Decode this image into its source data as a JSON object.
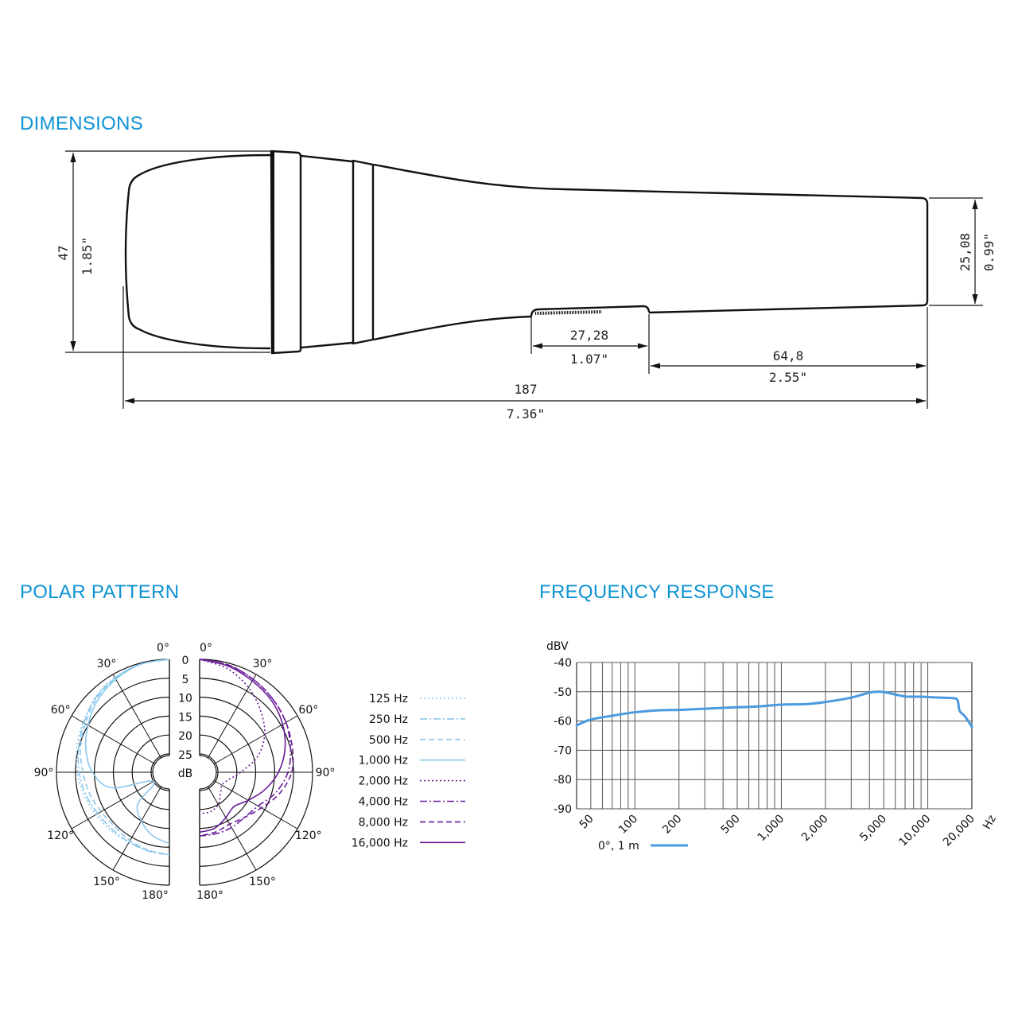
{
  "sections": {
    "dimensions": "DIMENSIONS",
    "polar": "POLAR PATTERN",
    "frequency": "FREQUENCY RESPONSE"
  },
  "dimensions": {
    "height_mm": "47",
    "height_in": "1.85\"",
    "end_mm": "25,08",
    "end_in": "0.99\"",
    "switch_mm": "27,28",
    "switch_in": "1.07\"",
    "tail_mm": "64,8",
    "tail_in": "2.55\"",
    "length_mm": "187",
    "length_in": "7.36\""
  },
  "chart_data": [
    {
      "type": "polar",
      "angle_labels": [
        "0°",
        "30°",
        "60°",
        "90°",
        "120°",
        "150°",
        "180°"
      ],
      "radial_labels": [
        "0",
        "5",
        "10",
        "15",
        "20",
        "25"
      ],
      "radial_unit": "dB",
      "angles_deg": [
        0,
        15,
        30,
        45,
        60,
        75,
        90,
        105,
        120,
        135,
        150,
        165,
        180
      ],
      "series": [
        {
          "name": "125 Hz",
          "side": "left",
          "color": "#8cc8ec",
          "dash": "2,3",
          "values": [
            0,
            0.3,
            1,
            2,
            3.5,
            4.5,
            5.5,
            6.5,
            7.5,
            8,
            8.5,
            8.5,
            8
          ]
        },
        {
          "name": "250 Hz",
          "side": "left",
          "color": "#8cc8ec",
          "dash": "9,3,2,3",
          "values": [
            0,
            0.3,
            1,
            2.2,
            3.8,
            5,
            6,
            7,
            8,
            8.5,
            8.5,
            8.3,
            8
          ]
        },
        {
          "name": "500 Hz",
          "side": "left",
          "color": "#8cc8ec",
          "dash": "7,4",
          "values": [
            0,
            0.3,
            1.2,
            2.5,
            4.2,
            5.5,
            7,
            8,
            9,
            9.5,
            9,
            8.5,
            8
          ]
        },
        {
          "name": "1,000 Hz",
          "side": "left",
          "color": "#8cc8ec",
          "dash": "",
          "values": [
            0,
            0.3,
            1.5,
            3,
            5,
            7,
            9.5,
            14,
            25,
            18,
            15,
            12.5,
            11
          ]
        },
        {
          "name": "2,000 Hz",
          "side": "right",
          "color": "#6a1b9a",
          "dash": "2,3",
          "values": [
            0,
            1.5,
            4,
            7,
            10,
            14,
            19,
            22,
            23,
            22,
            20,
            19,
            19
          ]
        },
        {
          "name": "4,000 Hz",
          "side": "right",
          "color": "#6a1b9a",
          "dash": "9,3,2,3",
          "values": [
            0,
            0.5,
            1.5,
            2.5,
            3.5,
            5,
            6.5,
            9,
            12,
            13,
            13,
            13,
            13
          ]
        },
        {
          "name": "8,000 Hz",
          "side": "right",
          "color": "#6a1b9a",
          "dash": "7,4",
          "values": [
            0,
            0.5,
            1.5,
            2.5,
            3.5,
            4.5,
            5.5,
            8,
            11,
            13,
            14,
            13.5,
            13
          ]
        },
        {
          "name": "16,000 Hz",
          "side": "right",
          "color": "#6a1b9a",
          "dash": "",
          "values": [
            0,
            0.8,
            2,
            3,
            4.5,
            6.5,
            9,
            12,
            15,
            17,
            16,
            14.5,
            14
          ]
        }
      ]
    },
    {
      "type": "line",
      "ylabel": "dBV",
      "xlabel": "Hz",
      "x_scale": "log",
      "xlim": [
        40,
        20000
      ],
      "ylim": [
        -90,
        -40
      ],
      "grid": true,
      "y_ticks": [
        "-40",
        "-50",
        "-60",
        "-70",
        "-80",
        "-90"
      ],
      "x_ticks": [
        "50",
        "100",
        "200",
        "500",
        "1,000",
        "2,000",
        "5,000",
        "10,000",
        "20,000"
      ],
      "legend_position": "bottom-left",
      "series": [
        {
          "name": "0°, 1 m",
          "color": "#4a9ae0",
          "x": [
            40,
            50,
            70,
            100,
            150,
            200,
            300,
            500,
            700,
            1000,
            1500,
            2000,
            3000,
            4000,
            4700,
            5500,
            7000,
            9000,
            12000,
            15000,
            16000,
            16500,
            18000,
            20000
          ],
          "y": [
            -61.5,
            -59.5,
            -58.2,
            -57,
            -56.3,
            -56.2,
            -55.8,
            -55.3,
            -55,
            -54.4,
            -54.2,
            -53.5,
            -52,
            -50.3,
            -50,
            -50.5,
            -51.6,
            -51.7,
            -52,
            -52.2,
            -53,
            -56.5,
            -58.5,
            -62
          ]
        }
      ]
    }
  ]
}
